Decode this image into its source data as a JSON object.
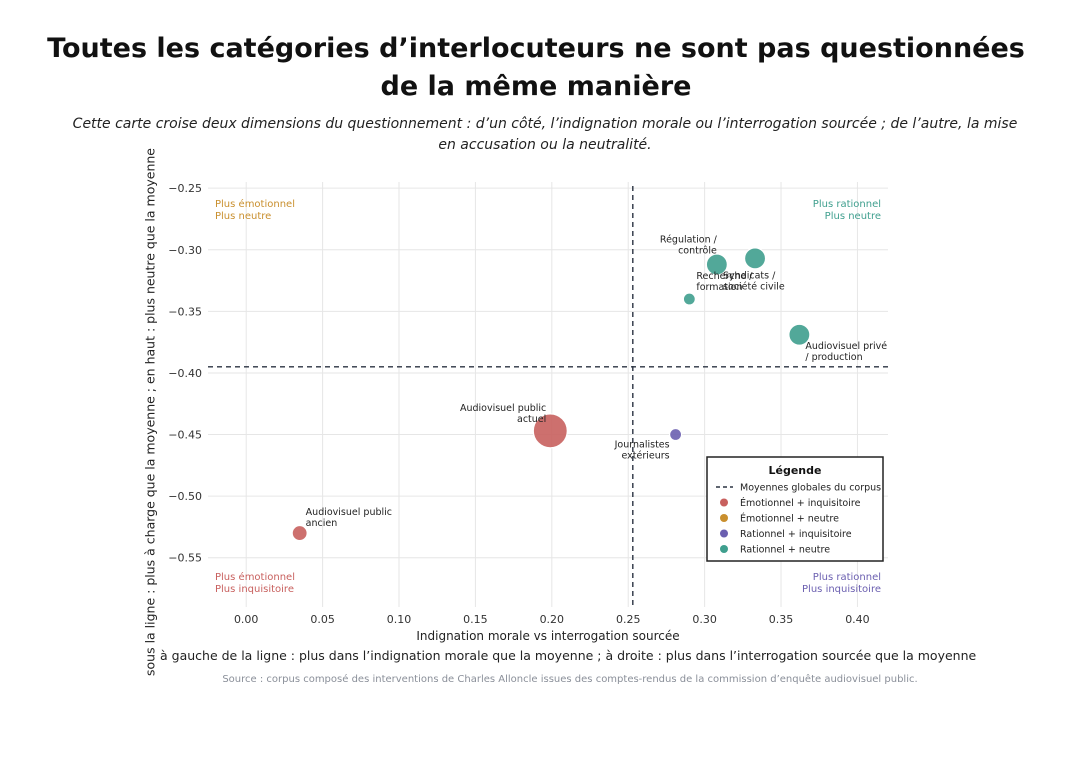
{
  "title_line1": "Toutes les catégories d’interlocuteurs ne sont pas questionnées",
  "title_line2": "de la même manière",
  "subtitle": "Cette carte croise deux dimensions du questionnement : d’un côté, l’indignation morale ou l’interrogation sourcée ; de l’autre, la mise en accusation ou la neutralité.",
  "outer_ylabel": "sous la ligne : plus à charge que la moyenne ; en haut : plus neutre que la moyenne",
  "outer_xlabel": "à gauche de la ligne : plus dans l’indignation morale que la moyenne ; à droite : plus dans l’interrogation sourcée que la moyenne",
  "source": "Source : corpus composé des interventions de Charles Alloncle issues des comptes-rendus de la commission d’enquête audiovisuel public.",
  "colors": {
    "emotionnel_inquisitoire": "#c8605e",
    "emotionnel_neutre": "#c98f2e",
    "rationnel_inquisitoire": "#6b5fb0",
    "rationnel_neutre": "#3f9f8e",
    "grid": "#e6e6e6",
    "dashed": "#2b3342"
  },
  "chart_data": {
    "type": "scatter",
    "xlabel": "Indignation morale vs interrogation sourcée",
    "ylabel": "",
    "xlim": [
      -0.025,
      0.42
    ],
    "ylim": [
      -0.59,
      -0.245
    ],
    "xticks": [
      0.0,
      0.05,
      0.1,
      0.15,
      0.2,
      0.25,
      0.3,
      0.35,
      0.4
    ],
    "xtick_labels": [
      "0.00",
      "0.05",
      "0.10",
      "0.15",
      "0.20",
      "0.25",
      "0.30",
      "0.35",
      "0.40"
    ],
    "yticks": [
      -0.25,
      -0.3,
      -0.35,
      -0.4,
      -0.45,
      -0.5,
      -0.55
    ],
    "ytick_labels": [
      "−0.25",
      "−0.30",
      "−0.35",
      "−0.40",
      "−0.45",
      "−0.50",
      "−0.55"
    ],
    "grid": true,
    "mean_x": 0.253,
    "mean_y": -0.395,
    "points": [
      {
        "label_lines": [
          "Régulation /",
          "contrôle"
        ],
        "x": 0.308,
        "y": -0.312,
        "size": "large",
        "category": "rationnel_neutre",
        "label_anchor": "end",
        "label_dx": 0,
        "label_dy": -22
      },
      {
        "label_lines": [
          "Syndicats /",
          "société civile"
        ],
        "x": 0.333,
        "y": -0.307,
        "size": "large",
        "category": "rationnel_neutre",
        "label_anchor": "start",
        "label_dx": -32,
        "label_dy": 20
      },
      {
        "label_lines": [
          "Recherche /",
          "formation"
        ],
        "x": 0.29,
        "y": -0.34,
        "size": "small",
        "category": "rationnel_neutre",
        "label_anchor": "start",
        "label_dx": 7,
        "label_dy": -20
      },
      {
        "label_lines": [
          "Audiovisuel privé",
          "/ production"
        ],
        "x": 0.362,
        "y": -0.369,
        "size": "large",
        "category": "rationnel_neutre",
        "label_anchor": "start",
        "label_dx": 6,
        "label_dy": 14
      },
      {
        "label_lines": [
          "Audiovisuel public",
          "actuel"
        ],
        "x": 0.199,
        "y": -0.447,
        "size": "xlarge",
        "category": "emotionnel_inquisitoire",
        "label_anchor": "end",
        "label_dx": -4,
        "label_dy": -20
      },
      {
        "label_lines": [
          "Journalistes",
          "extérieurs"
        ],
        "x": 0.281,
        "y": -0.45,
        "size": "small",
        "category": "rationnel_inquisitoire",
        "label_anchor": "end",
        "label_dx": -6,
        "label_dy": 13
      },
      {
        "label_lines": [
          "Audiovisuel public",
          "ancien"
        ],
        "x": 0.035,
        "y": -0.53,
        "size": "medium",
        "category": "emotionnel_inquisitoire",
        "label_anchor": "start",
        "label_dx": 6,
        "label_dy": -18
      }
    ],
    "corner_labels": {
      "top_left": {
        "lines": [
          "Plus émotionnel",
          "Plus neutre"
        ],
        "category": "emotionnel_neutre"
      },
      "top_right": {
        "lines": [
          "Plus rationnel",
          "Plus neutre"
        ],
        "category": "rationnel_neutre"
      },
      "bottom_left": {
        "lines": [
          "Plus émotionnel",
          "Plus inquisitoire"
        ],
        "category": "emotionnel_inquisitoire"
      },
      "bottom_right": {
        "lines": [
          "Plus rationnel",
          "Plus inquisitoire"
        ],
        "category": "rationnel_inquisitoire"
      }
    },
    "legend": {
      "title": "Légende",
      "placement": "lower-right",
      "entries": [
        {
          "label": "Moyennes globales du corpus",
          "kind": "dashed"
        },
        {
          "label": "Émotionnel + inquisitoire",
          "category": "emotionnel_inquisitoire"
        },
        {
          "label": "Émotionnel + neutre",
          "category": "emotionnel_neutre"
        },
        {
          "label": "Rationnel + inquisitoire",
          "category": "rationnel_inquisitoire"
        },
        {
          "label": "Rationnel + neutre",
          "category": "rationnel_neutre"
        }
      ]
    }
  }
}
